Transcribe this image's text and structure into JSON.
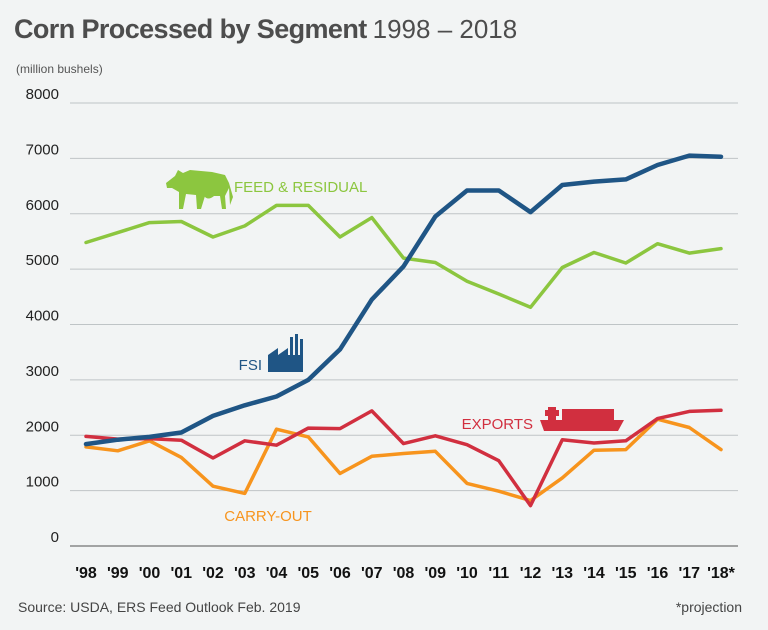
{
  "header": {
    "title": "Corn Processed by Segment",
    "years": "1998 – 2018",
    "units": "(million bushels)"
  },
  "footer": {
    "source": "Source: USDA, ERS Feed Outlook Feb. 2019",
    "note": "*projection"
  },
  "icons": [
    "cow-icon",
    "factory-icon",
    "ship-icon"
  ],
  "chart_data": {
    "type": "line",
    "x": [
      "'98",
      "'99",
      "'00",
      "'01",
      "'02",
      "'03",
      "'04",
      "'05",
      "'06",
      "'07",
      "'08",
      "'09",
      "'10",
      "'11",
      "'12",
      "'13",
      "'14",
      "'15",
      "'16",
      "'17",
      "'18*"
    ],
    "ylim": [
      0,
      8000
    ],
    "yticks": [
      0,
      1000,
      2000,
      3000,
      4000,
      5000,
      6000,
      7000,
      8000
    ],
    "grid": true,
    "series": [
      {
        "name": "FEED & RESIDUAL",
        "color": "#8cc63f",
        "values": [
          5480,
          5660,
          5840,
          5860,
          5580,
          5780,
          6150,
          6150,
          5580,
          5930,
          5200,
          5120,
          4780,
          4550,
          4310,
          5030,
          5300,
          5110,
          5460,
          5290,
          5370
        ]
      },
      {
        "name": "FSI",
        "color": "#1f5585",
        "values": [
          1840,
          1920,
          1970,
          2050,
          2350,
          2540,
          2700,
          3000,
          3550,
          4450,
          5050,
          5950,
          6420,
          6420,
          6030,
          6520,
          6580,
          6620,
          6880,
          7050,
          7030
        ]
      },
      {
        "name": "EXPORTS",
        "color": "#d12f3f",
        "values": [
          1980,
          1930,
          1940,
          1910,
          1590,
          1900,
          1820,
          2130,
          2120,
          2440,
          1850,
          1990,
          1830,
          1540,
          730,
          1920,
          1860,
          1900,
          2300,
          2430,
          2450
        ]
      },
      {
        "name": "CARRY-OUT",
        "color": "#f7941d",
        "values": [
          1790,
          1720,
          1900,
          1600,
          1080,
          950,
          2110,
          1970,
          1310,
          1620,
          1670,
          1710,
          1130,
          990,
          820,
          1230,
          1730,
          1740,
          2290,
          2140,
          1740
        ]
      }
    ]
  }
}
